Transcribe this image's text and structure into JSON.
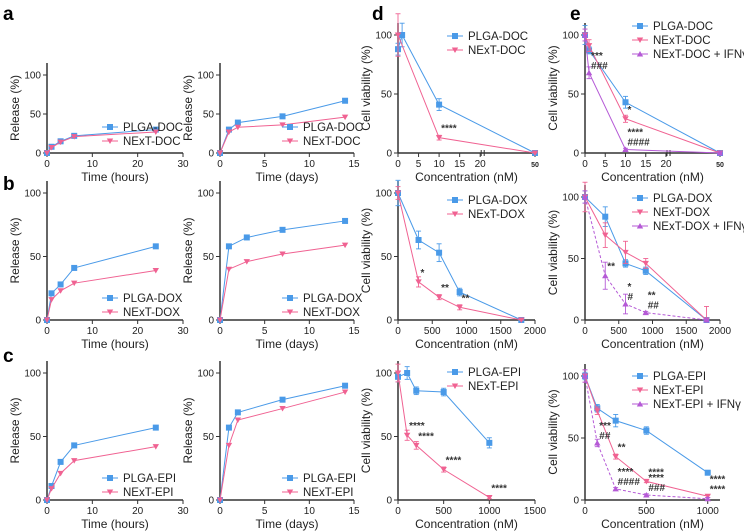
{
  "colors": {
    "plga": "#4a9ae8",
    "next": "#f06292",
    "ifn": "#b55ad6",
    "axis": "#444444"
  },
  "chart_data": [
    {
      "id": "a1",
      "panel_letter": "a",
      "type": "line",
      "xlabel": "Time (hours)",
      "ylabel": "Release (%)",
      "xlim": [
        0,
        30
      ],
      "ylim": [
        0,
        100
      ],
      "xticks": [
        0,
        10,
        20,
        30
      ],
      "yticks": [
        0,
        50,
        100
      ],
      "legend": "bottom-right",
      "series": [
        {
          "name": "PLGA-DOC",
          "key": "plga",
          "marker": "square",
          "x": [
            0,
            1,
            3,
            6,
            24
          ],
          "y": [
            0,
            8,
            15,
            22,
            30
          ]
        },
        {
          "name": "NExT-DOC",
          "key": "next",
          "marker": "tri-down",
          "x": [
            0,
            1,
            3,
            6,
            24
          ],
          "y": [
            0,
            7,
            14,
            21,
            27
          ]
        }
      ]
    },
    {
      "id": "a2",
      "panel_letter": "",
      "type": "line",
      "xlabel": "Time (days)",
      "ylabel": "Release (%)",
      "xlim": [
        0,
        15
      ],
      "ylim": [
        0,
        100
      ],
      "xticks": [
        0,
        5,
        10,
        15
      ],
      "yticks": [
        0,
        50,
        100
      ],
      "legend": "bottom-right",
      "series": [
        {
          "name": "PLGA-DOC",
          "key": "plga",
          "marker": "square",
          "x": [
            0,
            1,
            2,
            7,
            14
          ],
          "y": [
            0,
            30,
            39,
            47,
            67
          ]
        },
        {
          "name": "NExT-DOC",
          "key": "next",
          "marker": "tri-down",
          "x": [
            0,
            1,
            2,
            7,
            14
          ],
          "y": [
            0,
            27,
            33,
            36,
            46
          ]
        }
      ]
    },
    {
      "id": "d1",
      "panel_letter": "d",
      "type": "line",
      "xlabel": "Concentration (nM)",
      "ylabel": "Cell viability (%)",
      "xlim": [
        0,
        50
      ],
      "ylim": [
        0,
        100
      ],
      "broken_axis": true,
      "xticks": [
        0,
        5,
        10,
        15,
        20,
        50
      ],
      "yticks": [
        0,
        50,
        100
      ],
      "legend": "top-right",
      "series": [
        {
          "name": "PLGA-DOC",
          "key": "plga",
          "marker": "square",
          "x": [
            0,
            1,
            10,
            50
          ],
          "y": [
            88,
            100,
            41,
            0
          ],
          "err": [
            5,
            10,
            5,
            1
          ]
        },
        {
          "name": "NExT-DOC",
          "key": "next",
          "marker": "tri-down",
          "x": [
            0,
            10,
            50
          ],
          "y": [
            100,
            13,
            0
          ],
          "err": [
            18,
            2,
            1
          ]
        }
      ],
      "annotations": [
        {
          "x": 10,
          "y": 13,
          "text": "****"
        }
      ]
    },
    {
      "id": "e1",
      "panel_letter": "e",
      "type": "line",
      "xlabel": "Concentration (nM)",
      "ylabel": "Cell viability (%)",
      "xlim": [
        0,
        50
      ],
      "ylim": [
        0,
        100
      ],
      "broken_axis": true,
      "xticks": [
        0,
        5,
        10,
        15,
        20,
        50
      ],
      "yticks": [
        0,
        50,
        100
      ],
      "legend": "top-right",
      "series": [
        {
          "name": "PLGA-DOC",
          "key": "plga",
          "marker": "square",
          "x": [
            0,
            1,
            10,
            50
          ],
          "y": [
            100,
            87,
            43,
            0
          ],
          "err": [
            8,
            3,
            5,
            1
          ]
        },
        {
          "name": "NExT-DOC",
          "key": "next",
          "marker": "tri-down",
          "x": [
            0,
            1,
            10,
            50
          ],
          "y": [
            100,
            91,
            29,
            0
          ],
          "err": [
            5,
            5,
            3,
            1
          ]
        },
        {
          "name": "NExT-DOC + IFNγ",
          "key": "ifn",
          "marker": "tri-up",
          "x": [
            0,
            1,
            10,
            50
          ],
          "y": [
            100,
            68,
            3,
            0
          ],
          "err": [
            5,
            5,
            1,
            1
          ],
          "dashed": false
        }
      ],
      "annotations": [
        {
          "x": 1,
          "y": 68,
          "text": "***",
          "text2": "###"
        },
        {
          "x": 10,
          "y": 29,
          "text": "*"
        },
        {
          "x": 10,
          "y": 3,
          "text": "****",
          "text2": "####"
        }
      ]
    },
    {
      "id": "b1",
      "panel_letter": "b",
      "type": "line",
      "xlabel": "Time (hours)",
      "ylabel": "Release (%)",
      "xlim": [
        0,
        30
      ],
      "ylim": [
        0,
        100
      ],
      "xticks": [
        0,
        10,
        20,
        30
      ],
      "yticks": [
        0,
        50,
        100
      ],
      "legend": "bottom-right",
      "series": [
        {
          "name": "PLGA-DOX",
          "key": "plga",
          "marker": "square",
          "x": [
            0,
            1,
            3,
            6,
            24
          ],
          "y": [
            0,
            21,
            28,
            41,
            58
          ]
        },
        {
          "name": "NExT-DOX",
          "key": "next",
          "marker": "tri-down",
          "x": [
            0,
            1,
            3,
            6,
            24
          ],
          "y": [
            0,
            16,
            23,
            29,
            39
          ]
        }
      ]
    },
    {
      "id": "b2",
      "panel_letter": "",
      "type": "line",
      "xlabel": "Time (days)",
      "ylabel": "Release (%)",
      "xlim": [
        0,
        15
      ],
      "ylim": [
        0,
        100
      ],
      "xticks": [
        0,
        5,
        10,
        15
      ],
      "yticks": [
        0,
        50,
        100
      ],
      "legend": "bottom-right",
      "series": [
        {
          "name": "PLGA-DOX",
          "key": "plga",
          "marker": "square",
          "x": [
            0,
            1,
            3,
            7,
            14
          ],
          "y": [
            0,
            58,
            65,
            71,
            78
          ]
        },
        {
          "name": "NExT-DOX",
          "key": "next",
          "marker": "tri-down",
          "x": [
            0,
            1,
            3,
            7,
            14
          ],
          "y": [
            0,
            40,
            46,
            52,
            59
          ]
        }
      ]
    },
    {
      "id": "d2",
      "panel_letter": "",
      "type": "line",
      "xlabel": "Concentration (nM)",
      "ylabel": "Cell viability (%)",
      "xlim": [
        0,
        2000
      ],
      "ylim": [
        0,
        100
      ],
      "xticks": [
        0,
        500,
        1000,
        1500,
        2000
      ],
      "yticks": [
        0,
        50,
        100
      ],
      "legend": "top-right",
      "series": [
        {
          "name": "PLGA-DOX",
          "key": "plga",
          "marker": "square",
          "x": [
            0,
            300,
            600,
            900,
            1800
          ],
          "y": [
            100,
            63,
            53,
            22,
            0
          ],
          "err": [
            10,
            7,
            7,
            3,
            1
          ]
        },
        {
          "name": "NExT-DOX",
          "key": "next",
          "marker": "tri-down",
          "x": [
            0,
            300,
            600,
            900,
            1800
          ],
          "y": [
            100,
            30,
            18,
            10,
            0
          ],
          "err": [
            5,
            4,
            2,
            2,
            1
          ]
        }
      ],
      "annotations": [
        {
          "x": 300,
          "y": 30,
          "text": "*"
        },
        {
          "x": 600,
          "y": 18,
          "text": "**"
        },
        {
          "x": 900,
          "y": 10,
          "text": "**"
        }
      ]
    },
    {
      "id": "e2",
      "panel_letter": "",
      "type": "line",
      "xlabel": "Concentration (nM)",
      "ylabel": "Cell viability (%)",
      "xlim": [
        0,
        2000
      ],
      "ylim": [
        0,
        100
      ],
      "xticks": [
        0,
        500,
        1000,
        1500,
        2000
      ],
      "yticks": [
        0,
        50,
        100
      ],
      "legend": "top-right",
      "series": [
        {
          "name": "PLGA-DOX",
          "key": "plga",
          "marker": "square",
          "x": [
            0,
            300,
            600,
            900,
            1800
          ],
          "y": [
            100,
            84,
            46,
            40,
            0
          ],
          "err": [
            5,
            8,
            3,
            3,
            1
          ]
        },
        {
          "name": "NExT-DOX",
          "key": "next",
          "marker": "tri-down",
          "x": [
            0,
            300,
            600,
            900,
            1800
          ],
          "y": [
            100,
            69,
            55,
            46,
            0
          ],
          "err": [
            12,
            10,
            9,
            4,
            11
          ]
        },
        {
          "name": "NExT-DOX + IFNγ",
          "key": "ifn",
          "marker": "tri-up",
          "x": [
            0,
            300,
            600,
            900,
            1800
          ],
          "y": [
            100,
            36,
            13,
            6,
            0
          ],
          "err": [
            5,
            11,
            8,
            1,
            1
          ],
          "dashed": true
        }
      ],
      "annotations": [
        {
          "x": 300,
          "y": 36,
          "text": "**"
        },
        {
          "x": 600,
          "y": 13,
          "text": "*",
          "text2": "#"
        },
        {
          "x": 900,
          "y": 6,
          "text": "**",
          "text2": "##"
        }
      ]
    },
    {
      "id": "c1",
      "panel_letter": "c",
      "type": "line",
      "xlabel": "Time (hours)",
      "ylabel": "Release (%)",
      "xlim": [
        0,
        30
      ],
      "ylim": [
        0,
        100
      ],
      "xticks": [
        0,
        10,
        20,
        30
      ],
      "yticks": [
        0,
        50,
        100
      ],
      "legend": "bottom-right",
      "series": [
        {
          "name": "PLGA-EPI",
          "key": "plga",
          "marker": "square",
          "x": [
            0,
            1,
            3,
            6,
            24
          ],
          "y": [
            0,
            11,
            30,
            43,
            57
          ]
        },
        {
          "name": "NExT-EPI",
          "key": "next",
          "marker": "tri-down",
          "x": [
            0,
            1,
            3,
            6,
            24
          ],
          "y": [
            0,
            9,
            21,
            31,
            42
          ]
        }
      ]
    },
    {
      "id": "c2",
      "panel_letter": "",
      "type": "line",
      "xlabel": "Time (days)",
      "ylabel": "Release (%)",
      "xlim": [
        0,
        15
      ],
      "ylim": [
        0,
        100
      ],
      "xticks": [
        0,
        5,
        10,
        15
      ],
      "yticks": [
        0,
        50,
        100
      ],
      "legend": "bottom-right",
      "series": [
        {
          "name": "PLGA-EPI",
          "key": "plga",
          "marker": "square",
          "x": [
            0,
            1,
            2,
            7,
            14
          ],
          "y": [
            0,
            57,
            69,
            79,
            90
          ]
        },
        {
          "name": "NExT-EPI",
          "key": "next",
          "marker": "tri-down",
          "x": [
            0,
            1,
            2,
            7,
            14
          ],
          "y": [
            0,
            43,
            63,
            72,
            85
          ]
        }
      ]
    },
    {
      "id": "d3",
      "panel_letter": "",
      "type": "line",
      "xlabel": "Concentration (nM)",
      "ylabel": "Cell viability (%)",
      "xlim": [
        0,
        1500
      ],
      "ylim": [
        0,
        100
      ],
      "xticks": [
        0,
        500,
        1000,
        1500
      ],
      "yticks": [
        0,
        50,
        100
      ],
      "legend": "top-right",
      "series": [
        {
          "name": "PLGA-EPI",
          "key": "plga",
          "marker": "square",
          "x": [
            0,
            100,
            200,
            500,
            1000
          ],
          "y": [
            97,
            100,
            86,
            85,
            45
          ],
          "err": [
            4,
            5,
            3,
            3,
            4
          ]
        },
        {
          "name": "NExT-EPI",
          "key": "next",
          "marker": "tri-down",
          "x": [
            0,
            100,
            200,
            500,
            1000
          ],
          "y": [
            100,
            51,
            43,
            24,
            2
          ],
          "err": [
            7,
            4,
            3,
            2,
            1
          ]
        }
      ],
      "annotations": [
        {
          "x": 100,
          "y": 51,
          "text": "****"
        },
        {
          "x": 200,
          "y": 43,
          "text": "****"
        },
        {
          "x": 500,
          "y": 24,
          "text": "****"
        },
        {
          "x": 1000,
          "y": 2,
          "text": "****"
        }
      ]
    },
    {
      "id": "e3",
      "panel_letter": "",
      "type": "line",
      "xlabel": "Concentration (nM)",
      "ylabel": "Cell viability (%)",
      "xlim": [
        0,
        1100
      ],
      "ylim": [
        0,
        100
      ],
      "xticks": [
        0,
        500,
        1000
      ],
      "yticks": [
        0,
        50,
        100
      ],
      "legend": "top-right",
      "series": [
        {
          "name": "PLGA-EPI",
          "key": "plga",
          "marker": "square",
          "x": [
            0,
            100,
            250,
            500,
            1000
          ],
          "y": [
            100,
            74,
            64,
            56,
            22
          ],
          "err": [
            3,
            3,
            5,
            3,
            1
          ]
        },
        {
          "name": "NExT-EPI",
          "key": "next",
          "marker": "tri-down",
          "x": [
            0,
            100,
            250,
            500,
            1000
          ],
          "y": [
            100,
            72,
            35,
            15,
            3
          ],
          "err": [
            5,
            3,
            2,
            1,
            1
          ]
        },
        {
          "name": "NExT-EPI + IFNγ",
          "key": "ifn",
          "marker": "tri-up",
          "x": [
            0,
            100,
            250,
            500,
            1000
          ],
          "y": [
            100,
            46,
            9,
            4,
            1
          ],
          "err": [
            5,
            3,
            1,
            1,
            1
          ],
          "dashed": true
        }
      ],
      "annotations": [
        {
          "x": 100,
          "y": 46,
          "text": "***",
          "text2": "##"
        },
        {
          "x": 250,
          "y": 35,
          "text": "**"
        },
        {
          "x": 500,
          "y": 15,
          "text": "****"
        },
        {
          "x": 250,
          "y": 9,
          "text": "****",
          "text2": "####"
        },
        {
          "x": 500,
          "y": 4,
          "text": "****",
          "text2": "###"
        },
        {
          "x": 1000,
          "y": 3,
          "text": "****",
          "text2": "****"
        }
      ]
    }
  ]
}
